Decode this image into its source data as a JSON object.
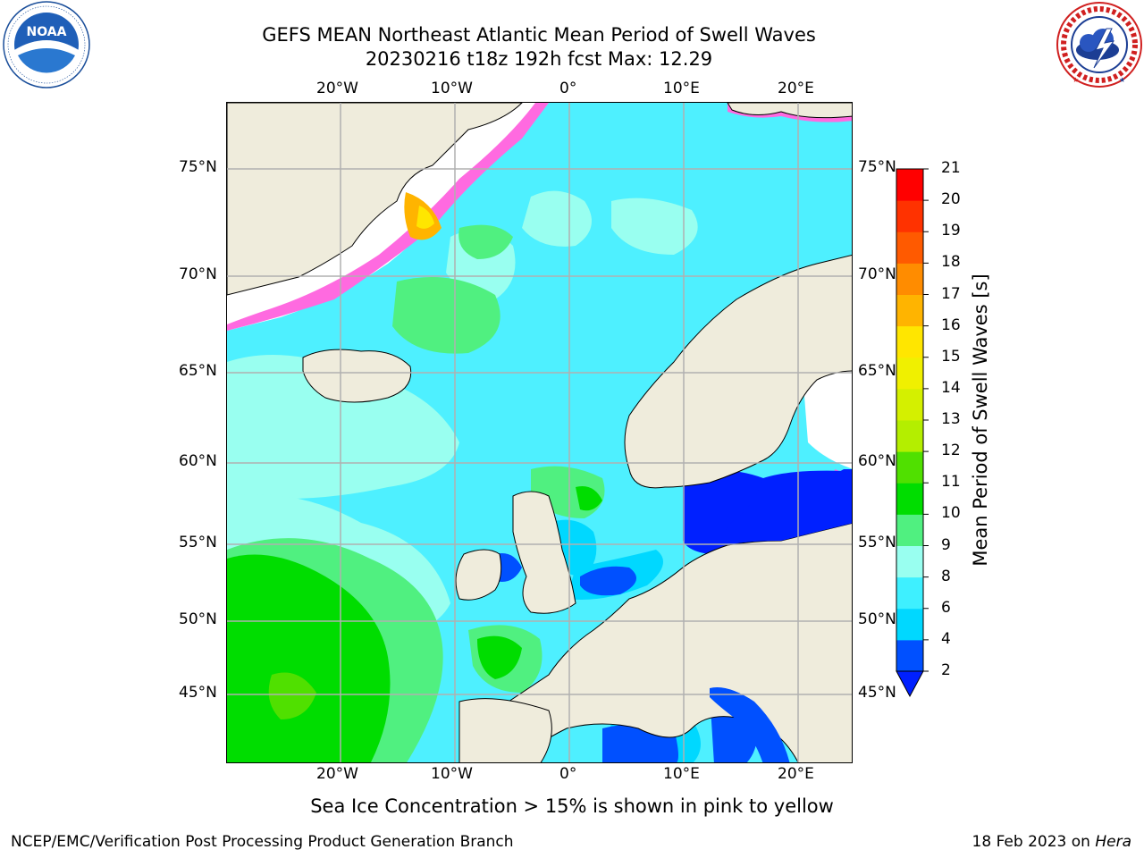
{
  "title": {
    "line1": "GEFS MEAN Northeast Atlantic Mean Period of Swell Waves",
    "line2": "20230216 t18z 192h fcst   Max: 12.29"
  },
  "logos": {
    "left": {
      "text": "NOAA",
      "ring_text": "NATIONAL OCEANIC AND ATMOSPHERIC ADMINISTRATION · U.S. DEPARTMENT OF COMMERCE"
    },
    "right": {
      "ring_text": "NATIONAL WEATHER SERVICE"
    }
  },
  "map": {
    "type": "filled-contour-map",
    "region": "Northeast Atlantic",
    "lon_ticks_top": [
      "20°W",
      "10°W",
      "0°",
      "10°E",
      "20°E"
    ],
    "lon_ticks_bottom": [
      "20°W",
      "10°W",
      "0°",
      "10°E",
      "20°E"
    ],
    "lat_ticks_left": [
      "75°N",
      "70°N",
      "65°N",
      "60°N",
      "55°N",
      "50°N",
      "45°N"
    ],
    "lat_ticks_right": [
      "75°N",
      "70°N",
      "65°N",
      "60°N",
      "55°N",
      "50°N",
      "45°N"
    ],
    "grid": true,
    "colors": {
      "ocean_base": "#4ef0ff",
      "land": "#efecdc",
      "ice_free": "#ffffff",
      "coast": "#000000",
      "grid": "#b0b0b0"
    }
  },
  "colorbar": {
    "title": "Mean Period of Swell Waves [s]",
    "labels": [
      "2",
      "4",
      "6",
      "8",
      "9",
      "10",
      "11",
      "12",
      "13",
      "14",
      "15",
      "16",
      "17",
      "18",
      "19",
      "20",
      "21"
    ],
    "colors": [
      "#0050ff",
      "#00d8ff",
      "#3ef0ff",
      "#99fff0",
      "#50f080",
      "#00dd00",
      "#50e000",
      "#b4ee00",
      "#d4f000",
      "#f0f000",
      "#ffe600",
      "#ffb400",
      "#ff8c00",
      "#ff5a00",
      "#ff3200",
      "#ff0000"
    ],
    "extend_color": "#0020ff"
  },
  "note": "Sea Ice Concentration > 15% is shown in pink to yellow",
  "footer": {
    "left": "NCEP/EMC/Verification Post Processing Product Generation Branch",
    "right_prefix": "18 Feb 2023 on ",
    "right_italic": "Hera"
  }
}
